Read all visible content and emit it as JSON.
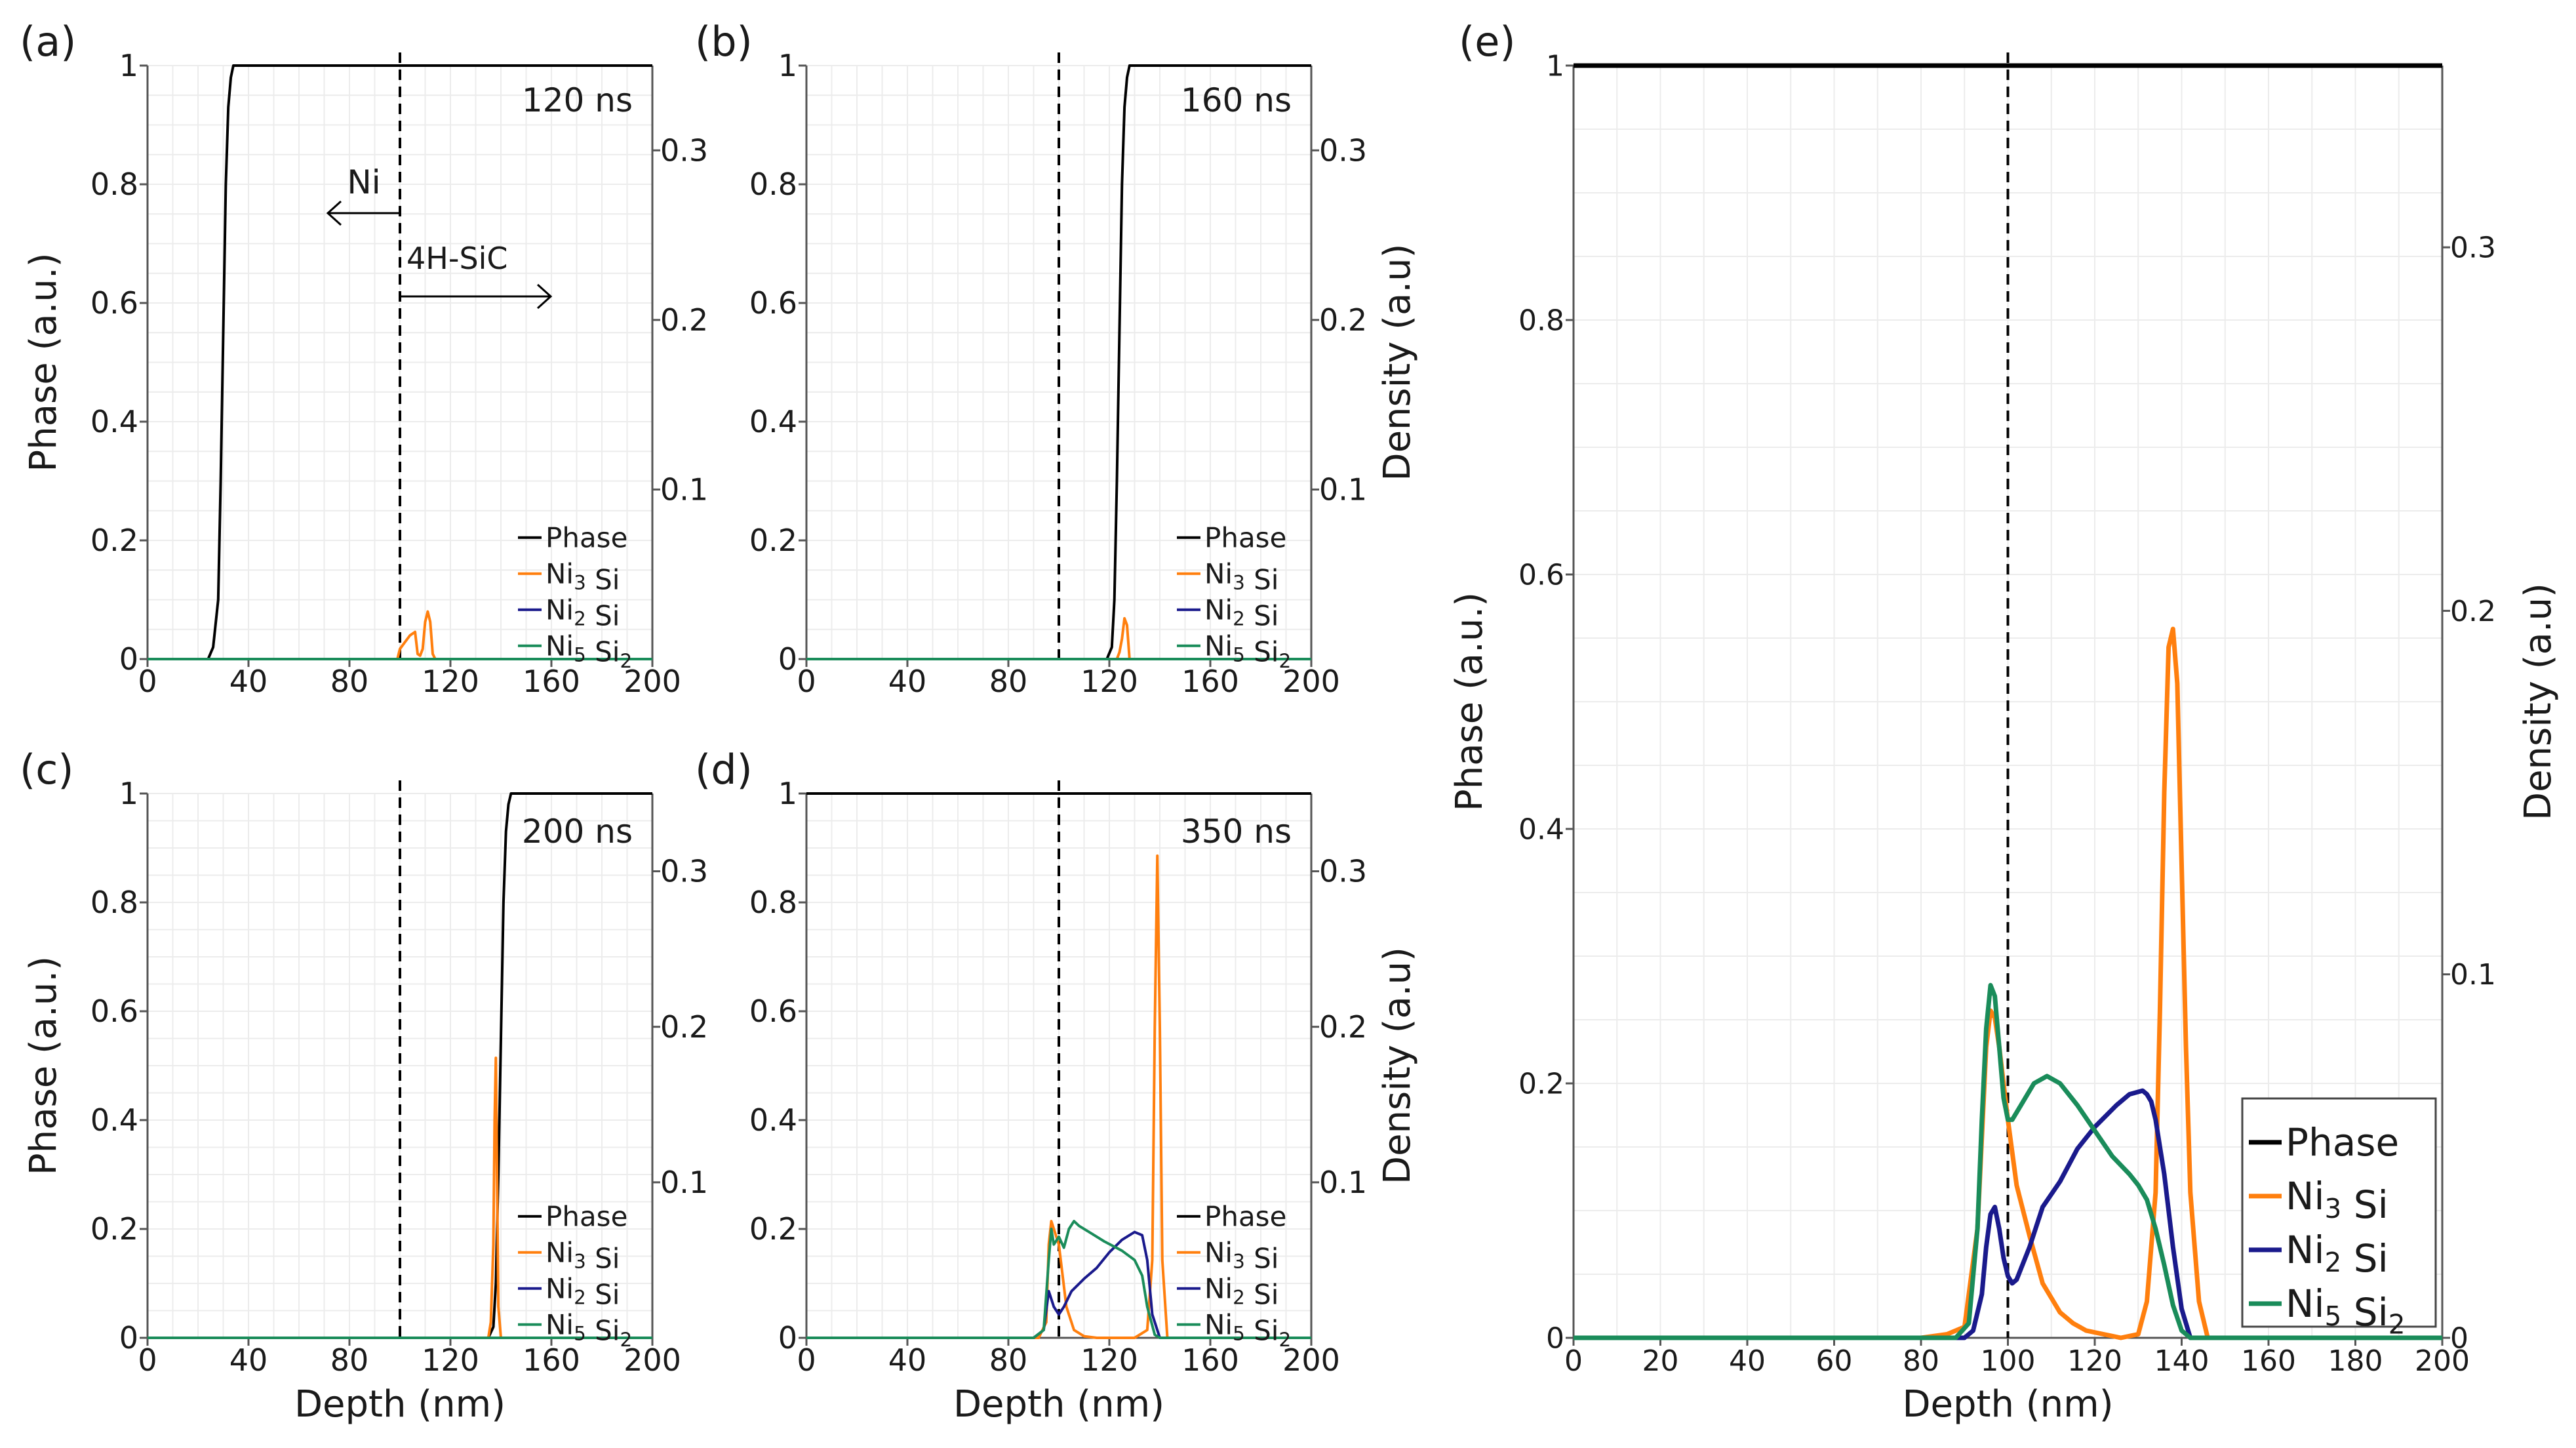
{
  "figure": {
    "xlabel": "Depth (nm)",
    "ylabel_left": "Phase (a.u.)",
    "ylabel_right": "Density (a.u)",
    "legend": [
      {
        "base": "Phase",
        "color": "#000000"
      },
      {
        "base": "Ni",
        "sub1": "3",
        "mid": " Si",
        "sub2": "",
        "color": "#ff7f0e"
      },
      {
        "base": "Ni",
        "sub1": "2",
        "mid": " Si",
        "sub2": "",
        "color": "#1a1a8c"
      },
      {
        "base": "Ni",
        "sub1": "5",
        "mid": " Si",
        "sub2": "2",
        "color": "#1a8c5a"
      }
    ],
    "annotations": {
      "ni": "Ni",
      "sic": "4H-SiC"
    }
  },
  "chart_data": [
    {
      "type": "line",
      "panel": "(a)",
      "time": "120 ns",
      "xlim": [
        0,
        200
      ],
      "ylim": [
        0,
        1
      ],
      "y2lim": [
        0,
        0.35
      ],
      "xticks": [
        0,
        40,
        80,
        120,
        160,
        200
      ],
      "yticks": [
        0,
        0.2,
        0.4,
        0.6,
        0.8,
        1
      ],
      "y2ticks": [
        0.1,
        0.2,
        0.3
      ],
      "interface": 100,
      "series": [
        {
          "name": "Phase",
          "axis": "left",
          "color": "#000000",
          "x": [
            0,
            24,
            26,
            28,
            29,
            30,
            31,
            32,
            33,
            34,
            36,
            38,
            200
          ],
          "y": [
            0,
            0,
            0.02,
            0.1,
            0.3,
            0.55,
            0.8,
            0.93,
            0.98,
            1,
            1,
            1,
            1
          ]
        },
        {
          "name": "Ni3Si",
          "axis": "right",
          "color": "#ff7f0e",
          "x": [
            0,
            99,
            100,
            102,
            104,
            106,
            107,
            108,
            109,
            110,
            111,
            112,
            113,
            114,
            200
          ],
          "y": [
            0,
            0,
            0.006,
            0.01,
            0.014,
            0.016,
            0.003,
            0.002,
            0.006,
            0.022,
            0.028,
            0.022,
            0.003,
            0,
            0
          ]
        },
        {
          "name": "Ni2Si",
          "axis": "right",
          "color": "#1a1a8c",
          "x": [
            0,
            200
          ],
          "y": [
            0,
            0
          ]
        },
        {
          "name": "Ni5Si2",
          "axis": "right",
          "color": "#1a8c5a",
          "x": [
            0,
            200
          ],
          "y": [
            0,
            0
          ]
        }
      ]
    },
    {
      "type": "line",
      "panel": "(b)",
      "time": "160 ns",
      "xlim": [
        0,
        200
      ],
      "ylim": [
        0,
        1
      ],
      "y2lim": [
        0,
        0.35
      ],
      "xticks": [
        0,
        40,
        80,
        120,
        160,
        200
      ],
      "yticks": [
        0,
        0.2,
        0.4,
        0.6,
        0.8,
        1
      ],
      "y2ticks": [
        0.1,
        0.2,
        0.3
      ],
      "interface": 100,
      "series": [
        {
          "name": "Phase",
          "axis": "left",
          "color": "#000000",
          "x": [
            0,
            119,
            121,
            122,
            123,
            124,
            125,
            126,
            127,
            128,
            130,
            132,
            200
          ],
          "y": [
            0,
            0,
            0.02,
            0.1,
            0.3,
            0.55,
            0.8,
            0.93,
            0.98,
            1,
            1,
            1,
            1
          ]
        },
        {
          "name": "Ni3Si",
          "axis": "right",
          "color": "#ff7f0e",
          "x": [
            0,
            123,
            124,
            125,
            126,
            127,
            128,
            200
          ],
          "y": [
            0,
            0,
            0.004,
            0.012,
            0.024,
            0.02,
            0,
            0
          ]
        },
        {
          "name": "Ni2Si",
          "axis": "right",
          "color": "#1a1a8c",
          "x": [
            0,
            200
          ],
          "y": [
            0,
            0
          ]
        },
        {
          "name": "Ni5Si2",
          "axis": "right",
          "color": "#1a8c5a",
          "x": [
            0,
            200
          ],
          "y": [
            0,
            0
          ]
        }
      ]
    },
    {
      "type": "line",
      "panel": "(c)",
      "time": "200 ns",
      "xlim": [
        0,
        200
      ],
      "ylim": [
        0,
        1
      ],
      "y2lim": [
        0,
        0.35
      ],
      "xticks": [
        0,
        40,
        80,
        120,
        160,
        200
      ],
      "yticks": [
        0,
        0.2,
        0.4,
        0.6,
        0.8,
        1
      ],
      "y2ticks": [
        0.1,
        0.2,
        0.3
      ],
      "interface": 100,
      "series": [
        {
          "name": "Phase",
          "axis": "left",
          "color": "#000000",
          "x": [
            0,
            135,
            137,
            138,
            139,
            140,
            141,
            142,
            143,
            144,
            146,
            148,
            200
          ],
          "y": [
            0,
            0,
            0.02,
            0.1,
            0.3,
            0.55,
            0.8,
            0.93,
            0.98,
            1,
            1,
            1,
            1
          ]
        },
        {
          "name": "Ni3Si",
          "axis": "right",
          "color": "#ff7f0e",
          "x": [
            0,
            135,
            136,
            137,
            137.5,
            138,
            138.5,
            139,
            140,
            200
          ],
          "y": [
            0,
            0,
            0.01,
            0.06,
            0.14,
            0.18,
            0.1,
            0.02,
            0,
            0
          ]
        },
        {
          "name": "Ni2Si",
          "axis": "right",
          "color": "#1a1a8c",
          "x": [
            0,
            200
          ],
          "y": [
            0,
            0
          ]
        },
        {
          "name": "Ni5Si2",
          "axis": "right",
          "color": "#1a8c5a",
          "x": [
            0,
            200
          ],
          "y": [
            0,
            0
          ]
        }
      ]
    },
    {
      "type": "line",
      "panel": "(d)",
      "time": "350 ns",
      "xlim": [
        0,
        200
      ],
      "ylim": [
        0,
        1
      ],
      "y2lim": [
        0,
        0.35
      ],
      "xticks": [
        0,
        40,
        80,
        120,
        160,
        200
      ],
      "yticks": [
        0,
        0.2,
        0.4,
        0.6,
        0.8,
        1
      ],
      "y2ticks": [
        0.1,
        0.2,
        0.3
      ],
      "interface": 100,
      "series": [
        {
          "name": "Phase",
          "axis": "left",
          "color": "#000000",
          "x": [
            0,
            200
          ],
          "y": [
            1,
            1
          ]
        },
        {
          "name": "Ni3Si",
          "axis": "right",
          "color": "#ff7f0e",
          "x": [
            0,
            92,
            95,
            96,
            97,
            100,
            103,
            106,
            110,
            115,
            130,
            135,
            137,
            138,
            139,
            140,
            141,
            143,
            200
          ],
          "y": [
            0,
            0,
            0.01,
            0.06,
            0.075,
            0.06,
            0.02,
            0.005,
            0.001,
            0,
            0,
            0.005,
            0.05,
            0.2,
            0.31,
            0.2,
            0.05,
            0,
            0
          ]
        },
        {
          "name": "Ni2Si",
          "axis": "right",
          "color": "#1a1a8c",
          "x": [
            0,
            90,
            94,
            96,
            98,
            100,
            102,
            105,
            110,
            115,
            120,
            125,
            130,
            133,
            135,
            137,
            140,
            200
          ],
          "y": [
            0,
            0,
            0.005,
            0.03,
            0.02,
            0.015,
            0.02,
            0.03,
            0.038,
            0.045,
            0.055,
            0.063,
            0.068,
            0.066,
            0.05,
            0.015,
            0,
            0
          ]
        },
        {
          "name": "Ni5Si2",
          "axis": "right",
          "color": "#1a8c5a",
          "x": [
            0,
            90,
            94,
            96,
            97,
            98,
            100,
            102,
            104,
            106,
            108,
            112,
            118,
            125,
            130,
            133,
            135,
            138,
            140,
            200
          ],
          "y": [
            0,
            0,
            0.005,
            0.05,
            0.07,
            0.06,
            0.065,
            0.058,
            0.07,
            0.075,
            0.072,
            0.068,
            0.062,
            0.056,
            0.05,
            0.04,
            0.02,
            0.002,
            0,
            0
          ]
        }
      ]
    },
    {
      "type": "line",
      "panel": "(e)",
      "time": "",
      "xlim": [
        0,
        200
      ],
      "ylim": [
        0,
        1
      ],
      "y2lim": [
        0,
        0.35
      ],
      "xticks": [
        0,
        20,
        40,
        60,
        80,
        100,
        120,
        140,
        160,
        180,
        200
      ],
      "yticks": [
        0,
        0.2,
        0.4,
        0.6,
        0.8,
        1
      ],
      "y2ticks": [
        0,
        0.1,
        0.2,
        0.3
      ],
      "interface": 100,
      "series": [
        {
          "name": "Phase",
          "axis": "left",
          "color": "#000000",
          "x": [
            0,
            200
          ],
          "y": [
            1,
            1
          ]
        },
        {
          "name": "Ni3Si",
          "axis": "right",
          "color": "#ff7f0e",
          "x": [
            0,
            80,
            86,
            90,
            93,
            95,
            96,
            97,
            98,
            100,
            102,
            105,
            108,
            112,
            115,
            118,
            122,
            126,
            130,
            132,
            134,
            135,
            136,
            137,
            138,
            139,
            140,
            141,
            142,
            144,
            146,
            200
          ],
          "y": [
            0,
            0,
            0.001,
            0.003,
            0.03,
            0.08,
            0.09,
            0.088,
            0.08,
            0.06,
            0.042,
            0.028,
            0.015,
            0.007,
            0.004,
            0.002,
            0.001,
            0,
            0.001,
            0.01,
            0.04,
            0.09,
            0.15,
            0.19,
            0.195,
            0.18,
            0.13,
            0.08,
            0.04,
            0.01,
            0,
            0
          ]
        },
        {
          "name": "Ni2Si",
          "axis": "right",
          "color": "#1a1a8c",
          "x": [
            0,
            90,
            92,
            94,
            95,
            96,
            97,
            98,
            99,
            100,
            101,
            102,
            105,
            108,
            112,
            116,
            120,
            125,
            128,
            131,
            132,
            133,
            134,
            136,
            138,
            140,
            142,
            200
          ],
          "y": [
            0,
            0,
            0.002,
            0.012,
            0.025,
            0.034,
            0.036,
            0.03,
            0.022,
            0.017,
            0.015,
            0.016,
            0.025,
            0.036,
            0.043,
            0.052,
            0.058,
            0.064,
            0.067,
            0.068,
            0.067,
            0.065,
            0.06,
            0.045,
            0.025,
            0.008,
            0,
            0
          ]
        },
        {
          "name": "Ni5Si2",
          "axis": "right",
          "color": "#1a8c5a",
          "x": [
            0,
            88,
            91,
            93,
            94,
            95,
            96,
            97,
            98,
            99,
            100,
            101,
            103,
            106,
            109,
            112,
            116,
            120,
            124,
            128,
            130,
            132,
            134,
            136,
            138,
            140,
            142,
            200
          ],
          "y": [
            0,
            0,
            0.004,
            0.03,
            0.06,
            0.085,
            0.097,
            0.094,
            0.08,
            0.066,
            0.06,
            0.06,
            0.064,
            0.07,
            0.072,
            0.07,
            0.064,
            0.057,
            0.05,
            0.045,
            0.042,
            0.038,
            0.03,
            0.02,
            0.009,
            0.002,
            0,
            0
          ]
        }
      ]
    }
  ]
}
